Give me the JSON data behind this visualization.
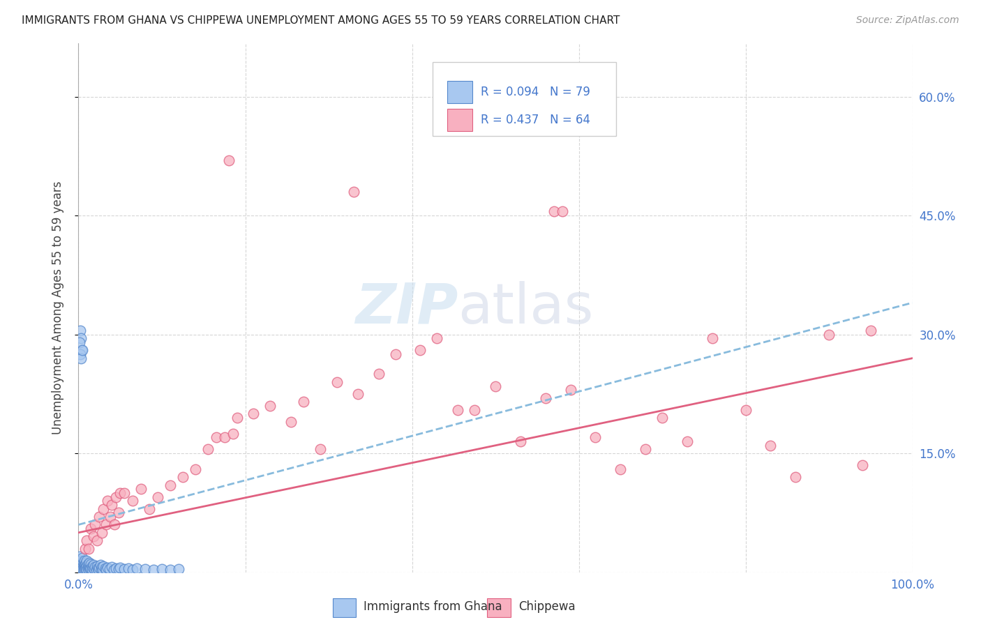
{
  "title": "IMMIGRANTS FROM GHANA VS CHIPPEWA UNEMPLOYMENT AMONG AGES 55 TO 59 YEARS CORRELATION CHART",
  "source": "Source: ZipAtlas.com",
  "ylabel": "Unemployment Among Ages 55 to 59 years",
  "xlim": [
    0,
    1.0
  ],
  "ylim": [
    0,
    0.667
  ],
  "xticks": [
    0.0,
    0.2,
    0.4,
    0.6,
    0.8,
    1.0
  ],
  "xticklabels": [
    "0.0%",
    "",
    "",
    "",
    "",
    "100.0%"
  ],
  "yticks": [
    0.0,
    0.15,
    0.3,
    0.45,
    0.6
  ],
  "yticklabels_right": [
    "",
    "15.0%",
    "30.0%",
    "45.0%",
    "60.0%"
  ],
  "ghana_color": "#a8c8f0",
  "ghana_edge_color": "#5588cc",
  "chippewa_color": "#f8b0c0",
  "chippewa_edge_color": "#e06080",
  "trendline_ghana_color": "#88bbdd",
  "trendline_chippewa_color": "#e06080",
  "tick_color": "#4477cc",
  "R_ghana": 0.094,
  "N_ghana": 79,
  "R_chippewa": 0.437,
  "N_chippewa": 64,
  "legend_label_ghana": "Immigrants from Ghana",
  "legend_label_chippewa": "Chippewa",
  "watermark_zip": "ZIP",
  "watermark_atlas": "atlas",
  "title_fontsize": 11,
  "source_fontsize": 10,
  "label_fontsize": 12,
  "tick_fontsize": 12
}
